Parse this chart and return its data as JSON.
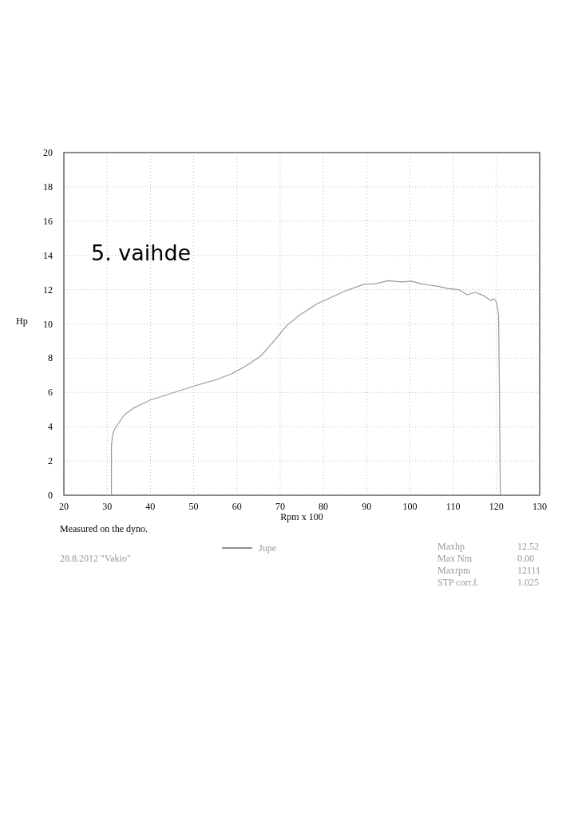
{
  "chart_data": {
    "type": "line",
    "xlabel": "Rpm x 100",
    "ylabel": "Hp",
    "xlim": [
      20,
      130
    ],
    "xticks": [
      20,
      30,
      40,
      50,
      60,
      70,
      80,
      90,
      100,
      110,
      120,
      130
    ],
    "ylim": [
      0,
      20
    ],
    "yticks": [
      0,
      2,
      4,
      6,
      8,
      10,
      12,
      14,
      16,
      18,
      20
    ],
    "grid": true,
    "legend": "bottom",
    "line_style": "solid",
    "marker": "none",
    "series": [
      {
        "name": "Jupe",
        "color": "#9a9a9a",
        "x": [
          31.0,
          31.0,
          31.2,
          31.6,
          32.5,
          34.0,
          36.2,
          39.9,
          45.5,
          50.4,
          54.7,
          58.9,
          62.1,
          65.4,
          68.9,
          71.5,
          74.4,
          78.7,
          79.9,
          84.8,
          89.2,
          92.0,
          95.0,
          98.0,
          100.3,
          102.5,
          104.5,
          106.5,
          108.7,
          111.3,
          113.2,
          115.2,
          117.0,
          118.7,
          119.3,
          119.8,
          120.2,
          120.5,
          120.7,
          120.9
        ],
        "values": [
          0,
          2.9,
          3.4,
          3.8,
          4.15,
          4.7,
          5.1,
          5.55,
          6.0,
          6.4,
          6.7,
          7.1,
          7.55,
          8.1,
          9.1,
          9.9,
          10.5,
          11.2,
          11.33,
          11.9,
          12.3,
          12.35,
          12.52,
          12.45,
          12.5,
          12.35,
          12.26,
          12.2,
          12.07,
          12.0,
          11.7,
          11.84,
          11.65,
          11.37,
          11.45,
          11.4,
          11.0,
          10.5,
          6.0,
          0
        ]
      }
    ],
    "annotations": [
      "5. vaihde",
      "Measured on the dyno.",
      "28.8.2012 \"Vakio\"",
      "Maxhp",
      "12.52",
      "Max Nm",
      "0.00",
      "Maxrpm",
      "12111",
      "STP corr.f.",
      "1.025"
    ]
  }
}
